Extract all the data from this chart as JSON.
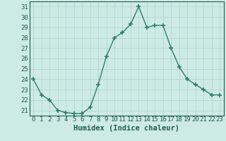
{
  "x": [
    0,
    1,
    2,
    3,
    4,
    5,
    6,
    7,
    8,
    9,
    10,
    11,
    12,
    13,
    14,
    15,
    16,
    17,
    18,
    19,
    20,
    21,
    22,
    23
  ],
  "y": [
    24,
    22.5,
    22,
    21,
    20.8,
    20.7,
    20.7,
    21.3,
    23.5,
    26.2,
    28,
    28.5,
    29.3,
    31,
    29,
    29.2,
    29.2,
    27,
    25.2,
    24,
    23.5,
    23,
    22.5,
    22.5
  ],
  "line_color": "#2e7d6e",
  "marker": "+",
  "marker_size": 4,
  "marker_edge_width": 1.2,
  "line_width": 1.0,
  "bg_color": "#ceeae4",
  "grid_color": "#a8d4cc",
  "xlabel": "Humidex (Indice chaleur)",
  "xlim": [
    -0.5,
    23.5
  ],
  "ylim": [
    20.5,
    31.5
  ],
  "yticks": [
    21,
    22,
    23,
    24,
    25,
    26,
    27,
    28,
    29,
    30,
    31
  ],
  "xticks": [
    0,
    1,
    2,
    3,
    4,
    5,
    6,
    7,
    8,
    9,
    10,
    11,
    12,
    13,
    14,
    15,
    16,
    17,
    18,
    19,
    20,
    21,
    22,
    23
  ],
  "tick_color": "#1e5c50",
  "label_color": "#1e5c50",
  "font_size": 6.5,
  "xlabel_font_size": 7.5
}
